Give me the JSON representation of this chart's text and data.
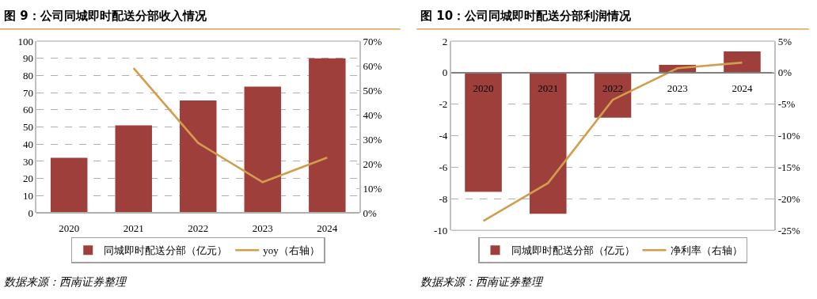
{
  "chart_data": [
    {
      "type": "bar",
      "title": "图 9：公司同城即时配送分部收入情况",
      "categories": [
        "2020",
        "2021",
        "2022",
        "2023",
        "2024"
      ],
      "series": [
        {
          "name": "同城即时配送分部（亿元）",
          "color": "#9e3f3c",
          "values": [
            32,
            51,
            65.5,
            73.5,
            90
          ]
        },
        {
          "name": "yoy（右轴）",
          "type": "line",
          "axis": "y2",
          "color": "#d29d4c",
          "values": [
            null,
            59,
            28.5,
            12.5,
            22.5
          ]
        }
      ],
      "ylim": [
        0,
        100
      ],
      "yticks": [
        0,
        10,
        20,
        30,
        40,
        50,
        60,
        70,
        80,
        90,
        100
      ],
      "y2lim": [
        0,
        70
      ],
      "y2ticks": [
        {
          "value": 0,
          "label": "0%"
        },
        {
          "value": 10,
          "label": "10%"
        },
        {
          "value": 20,
          "label": "20%"
        },
        {
          "value": 30,
          "label": "30%"
        },
        {
          "value": 40,
          "label": "40%"
        },
        {
          "value": 50,
          "label": "50%"
        },
        {
          "value": 60,
          "label": "60%"
        },
        {
          "value": 70,
          "label": "70%"
        }
      ],
      "grid": "y",
      "legend": "bottom",
      "marker": "none",
      "line_style": "solid",
      "annotations": [
        "数据来源：西南证券整理"
      ]
    },
    {
      "type": "bar",
      "title": "图 10：公司同城即时配送分部利润情况",
      "categories": [
        "2020",
        "2021",
        "2022",
        "2023",
        "2024"
      ],
      "series": [
        {
          "name": "同城即时配送分部（亿元）",
          "color": "#9e3f3c",
          "values": [
            -7.55,
            -8.95,
            -2.85,
            0.5,
            1.35
          ]
        },
        {
          "name": "净利率（右轴）",
          "type": "line",
          "axis": "y2",
          "color": "#d29d4c",
          "values": [
            -23.5,
            -17.5,
            -4.3,
            0.7,
            1.6
          ]
        }
      ],
      "ylim": [
        -10,
        2
      ],
      "yticks": [
        -10,
        -8,
        -6,
        -4,
        -2,
        0,
        2
      ],
      "y2lim": [
        -25,
        5
      ],
      "y2ticks": [
        {
          "value": -25,
          "label": "-25%"
        },
        {
          "value": -20,
          "label": "-20%"
        },
        {
          "value": -15,
          "label": "-15%"
        },
        {
          "value": -10,
          "label": "-10%"
        },
        {
          "value": -5,
          "label": "-5%"
        },
        {
          "value": 0,
          "label": "0%"
        },
        {
          "value": 5,
          "label": "5%"
        }
      ],
      "grid": "y",
      "legend": "bottom",
      "marker": "none",
      "line_style": "solid",
      "annotations": [
        "数据来源：西南证券整理"
      ]
    }
  ]
}
